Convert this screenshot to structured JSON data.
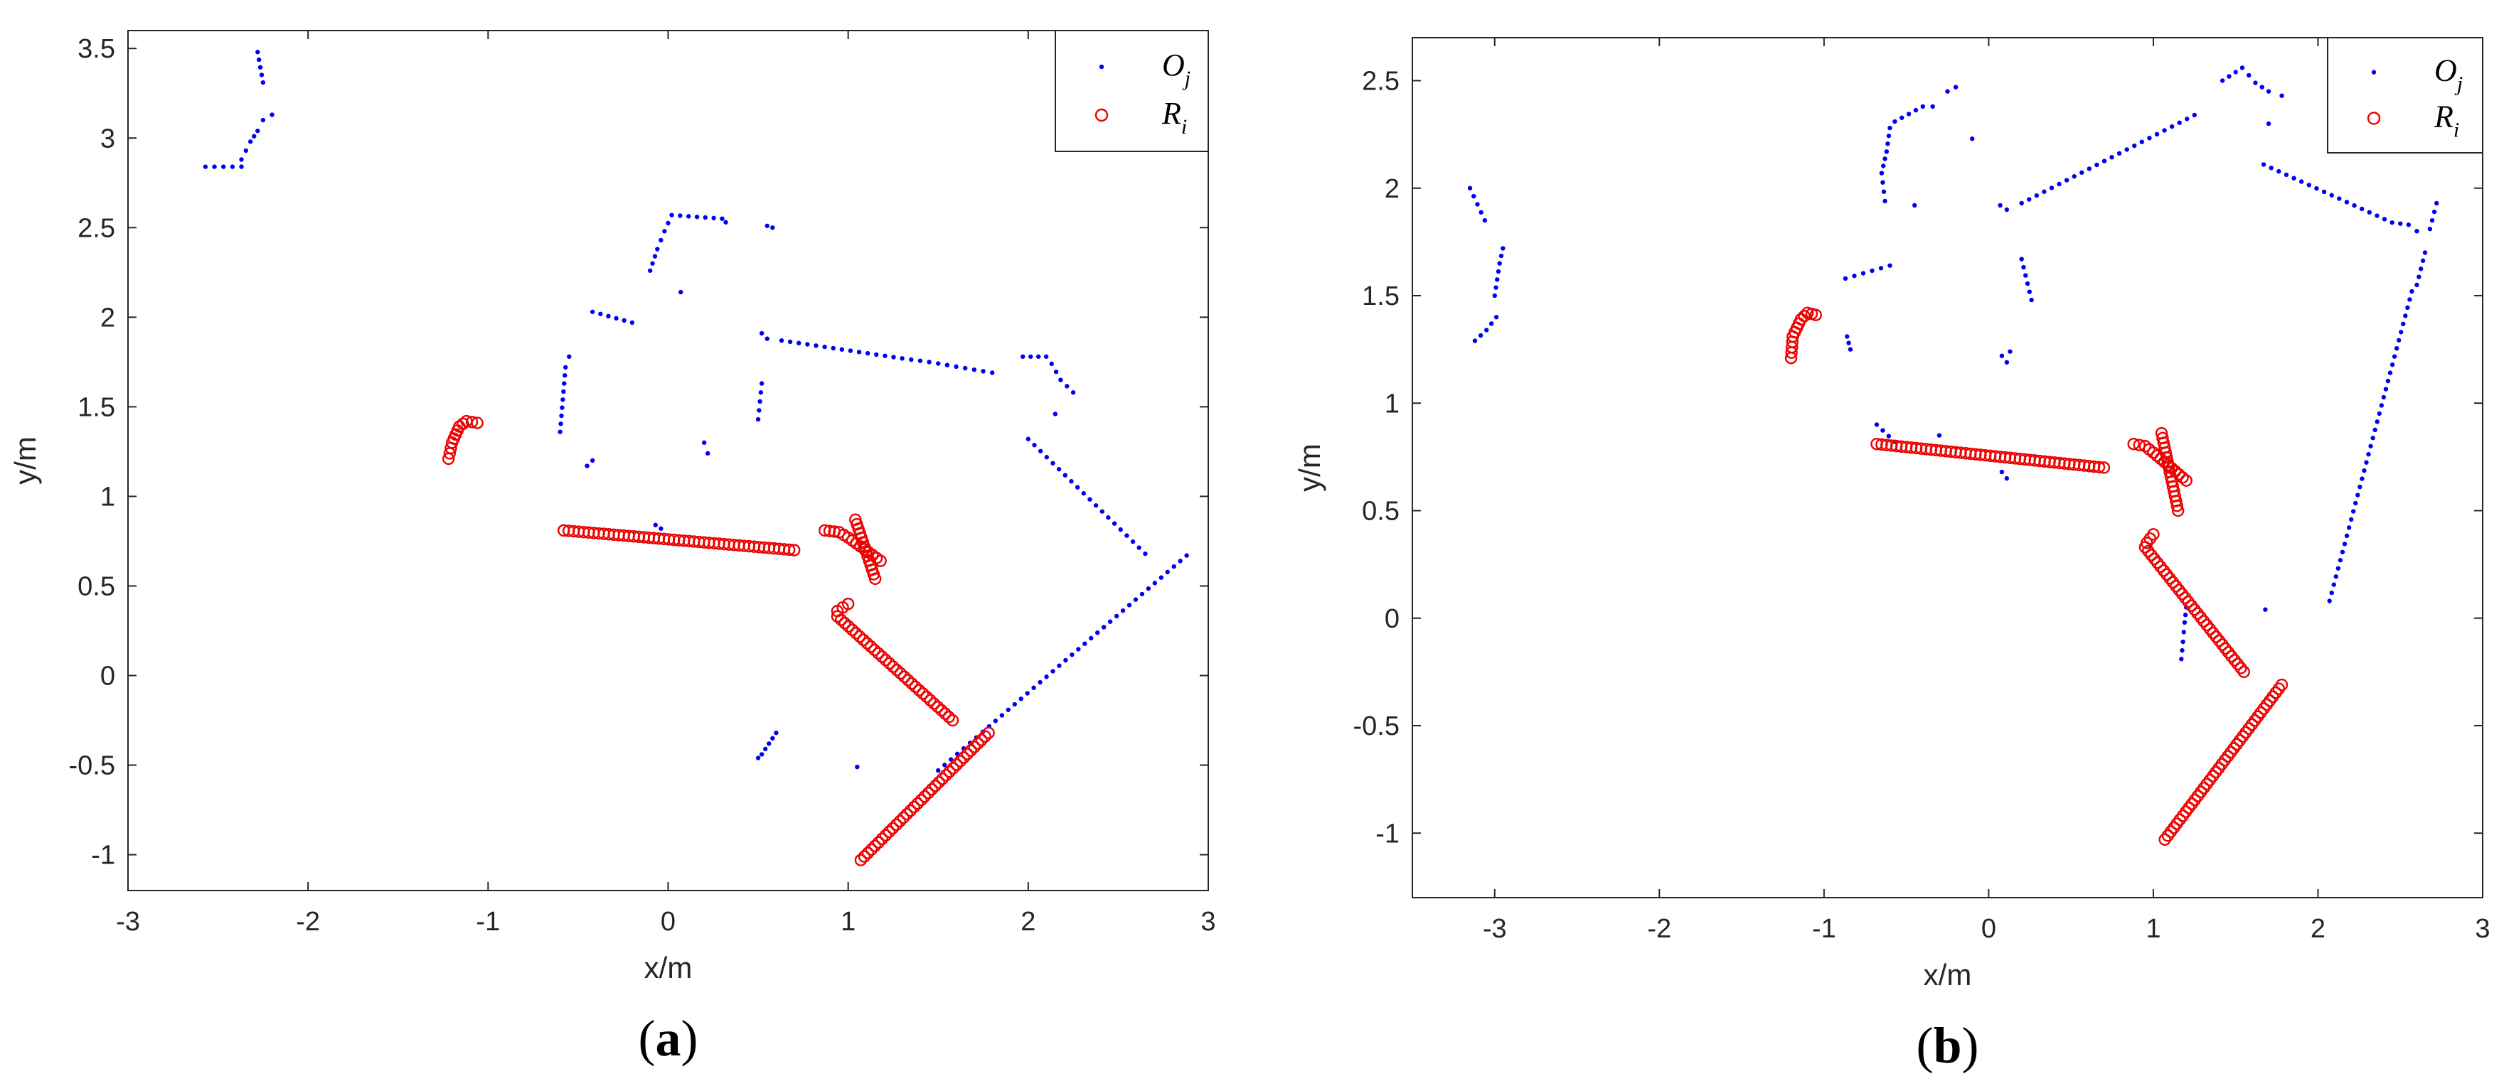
{
  "colors": {
    "obstacle": "#0000ee",
    "robot": "#ee0000",
    "axis": "#262626"
  },
  "chart_data": [
    {
      "type": "scatter",
      "panel_label": "(a)",
      "xlabel": "x/m",
      "ylabel": "y/m",
      "xlim": [
        -3,
        3
      ],
      "ylim": [
        -1.2,
        3.6
      ],
      "xticks": [
        "-3",
        "-2",
        "-1",
        "0",
        "1",
        "2",
        "3"
      ],
      "yticks": [
        "-1",
        "-0.5",
        "0",
        "0.5",
        "1",
        "1.5",
        "2",
        "2.5",
        "3",
        "3.5"
      ],
      "legend": {
        "position": "top-right",
        "entries": [
          "O_j",
          "R_i"
        ]
      },
      "series": [
        {
          "name": "O_j",
          "marker": "dot",
          "segments": [
            [
              [
                -2.57,
                2.84
              ],
              [
                -2.42,
                2.84
              ],
              [
                -2.37,
                2.84
              ]
            ],
            [
              [
                -2.37,
                2.88
              ],
              [
                -2.32,
                2.98
              ],
              [
                -2.28,
                3.04
              ],
              [
                -2.25,
                3.1
              ],
              [
                -2.2,
                3.13
              ]
            ],
            [
              [
                -2.28,
                3.48
              ],
              [
                -2.25,
                3.31
              ]
            ],
            [
              [
                -0.6,
                1.36
              ],
              [
                -0.57,
                1.72
              ],
              [
                -0.55,
                1.78
              ]
            ],
            [
              [
                -0.45,
                1.17
              ],
              [
                -0.42,
                1.2
              ]
            ],
            [
              [
                -0.42,
                2.03
              ],
              [
                -0.2,
                1.97
              ]
            ],
            [
              [
                -0.1,
                2.26
              ],
              [
                -0.06,
                2.38
              ],
              [
                -0.02,
                2.48
              ],
              [
                0.02,
                2.57
              ],
              [
                0.3,
                2.55
              ],
              [
                0.32,
                2.53
              ]
            ],
            [
              [
                0.07,
                2.14
              ]
            ],
            [
              [
                0.2,
                1.3
              ],
              [
                0.22,
                1.24
              ]
            ],
            [
              [
                0.55,
                2.51
              ],
              [
                0.58,
                2.5
              ]
            ],
            [
              [
                0.5,
                1.43
              ],
              [
                0.52,
                1.63
              ]
            ],
            [
              [
                0.52,
                1.91
              ],
              [
                0.55,
                1.88
              ]
            ],
            [
              [
                0.63,
                1.87
              ],
              [
                1.3,
                1.77
              ],
              [
                1.45,
                1.75
              ],
              [
                1.8,
                1.69
              ]
            ],
            [
              [
                1.97,
                1.78
              ],
              [
                2.1,
                1.78
              ]
            ],
            [
              [
                2.13,
                1.74
              ],
              [
                2.18,
                1.65
              ],
              [
                2.25,
                1.58
              ]
            ],
            [
              [
                2.15,
                1.46
              ]
            ],
            [
              [
                2.0,
                1.32
              ],
              [
                2.65,
                0.68
              ]
            ],
            [
              [
                -0.07,
                0.84
              ],
              [
                -0.04,
                0.82
              ]
            ],
            [
              [
                1.05,
                -0.51
              ]
            ],
            [
              [
                1.5,
                -0.53
              ],
              [
                2.88,
                0.67
              ]
            ],
            [
              [
                0.5,
                -0.46
              ],
              [
                0.52,
                -0.44
              ],
              [
                0.54,
                -0.41
              ],
              [
                0.56,
                -0.38
              ],
              [
                0.58,
                -0.35
              ],
              [
                0.6,
                -0.32
              ]
            ]
          ]
        },
        {
          "name": "R_i",
          "marker": "circle",
          "segments": [
            [
              [
                -1.22,
                1.21
              ],
              [
                -1.2,
                1.3
              ],
              [
                -1.16,
                1.39
              ],
              [
                -1.12,
                1.42
              ],
              [
                -1.06,
                1.41
              ]
            ],
            [
              [
                -0.58,
                0.81
              ],
              [
                0.7,
                0.7
              ]
            ],
            [
              [
                0.87,
                0.81
              ],
              [
                0.95,
                0.8
              ],
              [
                1.0,
                0.77
              ],
              [
                1.18,
                0.64
              ]
            ],
            [
              [
                1.04,
                0.87
              ],
              [
                1.15,
                0.54
              ]
            ],
            [
              [
                0.94,
                0.36
              ],
              [
                0.97,
                0.38
              ],
              [
                1.0,
                0.4
              ]
            ],
            [
              [
                0.94,
                0.33
              ],
              [
                1.58,
                -0.25
              ]
            ],
            [
              [
                1.07,
                -1.03
              ],
              [
                1.78,
                -0.32
              ]
            ]
          ]
        }
      ]
    },
    {
      "type": "scatter",
      "panel_label": "(b)",
      "xlabel": "x/m",
      "ylabel": "y/m",
      "xlim": [
        -3.5,
        3
      ],
      "ylim": [
        -1.3,
        2.7
      ],
      "xticks": [
        "-3",
        "-2",
        "-1",
        "0",
        "1",
        "2",
        "3"
      ],
      "yticks": [
        "-1",
        "-0.5",
        "0",
        "0.5",
        "1",
        "1.5",
        "2",
        "2.5"
      ],
      "legend": {
        "position": "top-right",
        "entries": [
          "O_j",
          "R_i"
        ]
      },
      "series": [
        {
          "name": "O_j",
          "marker": "dot",
          "segments": [
            [
              [
                -3.15,
                2.0
              ],
              [
                -3.06,
                1.85
              ]
            ],
            [
              [
                -3.12,
                1.29
              ],
              [
                -3.05,
                1.34
              ],
              [
                -2.99,
                1.4
              ]
            ],
            [
              [
                -3.0,
                1.5
              ],
              [
                -2.97,
                1.65
              ],
              [
                -2.95,
                1.72
              ]
            ],
            [
              [
                -0.86,
                1.31
              ],
              [
                -0.84,
                1.25
              ]
            ],
            [
              [
                -0.87,
                1.58
              ],
              [
                -0.6,
                1.64
              ]
            ],
            [
              [
                -0.68,
                0.9
              ],
              [
                -0.57,
                0.82
              ]
            ],
            [
              [
                -0.63,
                1.94
              ],
              [
                -0.65,
                2.07
              ],
              [
                -0.62,
                2.17
              ],
              [
                -0.6,
                2.28
              ]
            ],
            [
              [
                -0.57,
                2.31
              ],
              [
                -0.4,
                2.38
              ],
              [
                -0.34,
                2.38
              ]
            ],
            [
              [
                -0.45,
                1.92
              ]
            ],
            [
              [
                -0.25,
                2.45
              ],
              [
                -0.2,
                2.47
              ]
            ],
            [
              [
                -0.1,
                2.23
              ]
            ],
            [
              [
                -0.3,
                0.85
              ]
            ],
            [
              [
                0.07,
                1.92
              ],
              [
                0.11,
                1.9
              ]
            ],
            [
              [
                0.08,
                1.22
              ],
              [
                0.13,
                1.24
              ],
              [
                0.11,
                1.19
              ]
            ],
            [
              [
                0.08,
                0.68
              ],
              [
                0.11,
                0.65
              ]
            ],
            [
              [
                0.2,
                1.67
              ],
              [
                0.26,
                1.48
              ]
            ],
            [
              [
                0.2,
                1.93
              ],
              [
                1.25,
                2.34
              ]
            ],
            [
              [
                1.42,
                2.5
              ],
              [
                1.5,
                2.54
              ],
              [
                1.54,
                2.56
              ],
              [
                1.62,
                2.49
              ],
              [
                1.7,
                2.45
              ]
            ],
            [
              [
                1.78,
                2.43
              ]
            ],
            [
              [
                1.7,
                2.3
              ]
            ],
            [
              [
                1.67,
                2.11
              ],
              [
                2.45,
                1.84
              ],
              [
                2.55,
                1.83
              ]
            ],
            [
              [
                2.6,
                1.8
              ]
            ],
            [
              [
                2.72,
                1.93
              ],
              [
                2.68,
                1.81
              ]
            ],
            [
              [
                2.65,
                1.7
              ],
              [
                2.6,
                1.55
              ]
            ],
            [
              [
                2.07,
                0.08
              ],
              [
                2.57,
                1.52
              ]
            ],
            [
              [
                1.68,
                0.04
              ]
            ],
            [
              [
                1.17,
                -0.19
              ],
              [
                1.18,
                -0.11
              ],
              [
                1.19,
                -0.02
              ],
              [
                1.2,
                0.05
              ]
            ]
          ]
        },
        {
          "name": "R_i",
          "marker": "circle",
          "segments": [
            [
              [
                -1.2,
                1.21
              ],
              [
                -1.19,
                1.31
              ],
              [
                -1.14,
                1.39
              ],
              [
                -1.1,
                1.42
              ],
              [
                -1.05,
                1.41
              ]
            ],
            [
              [
                -0.68,
                0.81
              ],
              [
                0.7,
                0.7
              ]
            ],
            [
              [
                0.88,
                0.81
              ],
              [
                0.95,
                0.8
              ],
              [
                1.0,
                0.77
              ],
              [
                1.2,
                0.64
              ]
            ],
            [
              [
                1.05,
                0.86
              ],
              [
                1.15,
                0.5
              ]
            ],
            [
              [
                0.96,
                0.35
              ],
              [
                1.0,
                0.39
              ]
            ],
            [
              [
                0.95,
                0.33
              ],
              [
                1.55,
                -0.25
              ]
            ],
            [
              [
                1.07,
                -1.03
              ],
              [
                1.78,
                -0.31
              ]
            ]
          ]
        }
      ]
    }
  ]
}
